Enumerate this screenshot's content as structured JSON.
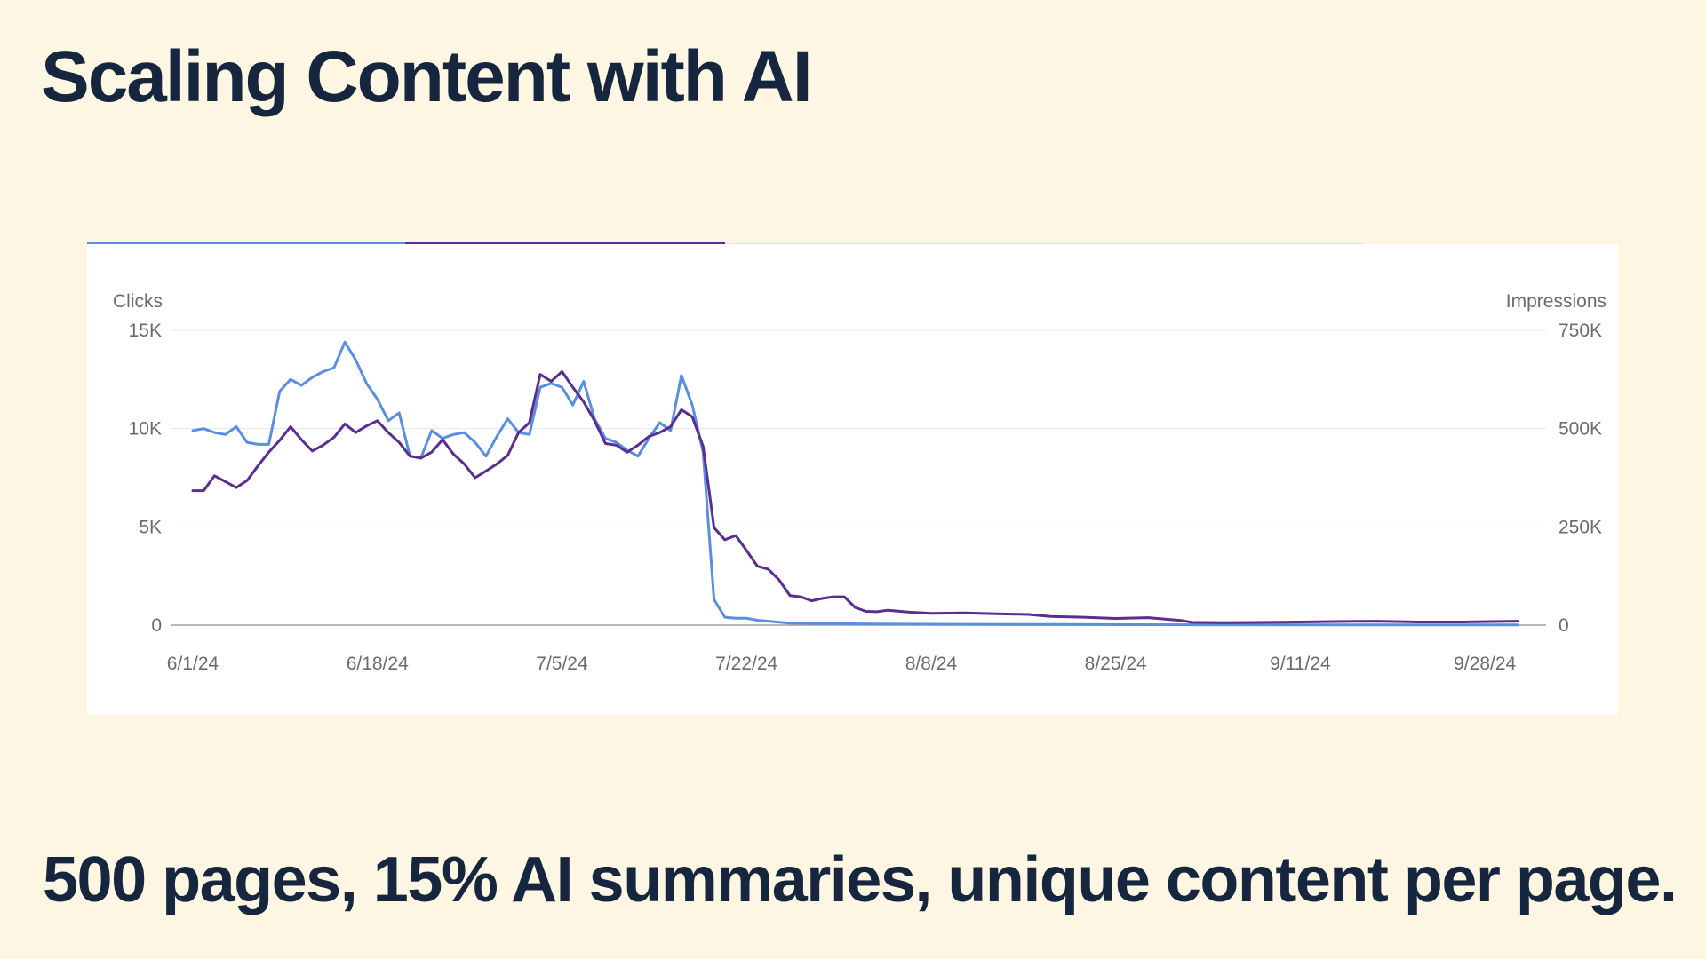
{
  "slide": {
    "title": "Scaling Content with AI",
    "footer": "500 pages, 15% AI summaries, unique content per page."
  },
  "colors": {
    "background": "#fdf6e3",
    "text": "#17263f",
    "clicks": "#5b8ee0",
    "impressions": "#5a2d91",
    "grid": "#e8e8e8",
    "baseline": "#9e9e9e"
  },
  "chart_data": {
    "type": "line",
    "left_axis_label": "Clicks",
    "right_axis_label": "Impressions",
    "left_axis": {
      "ylim": [
        0,
        15000
      ],
      "ticks": [
        0,
        5000,
        10000,
        15000
      ],
      "tick_labels": [
        "0",
        "5K",
        "10K",
        "15K"
      ]
    },
    "right_axis": {
      "ylim": [
        0,
        750000
      ],
      "ticks": [
        0,
        250000,
        500000,
        750000
      ],
      "tick_labels": [
        "0",
        "250K",
        "500K",
        "750K"
      ]
    },
    "x_range": [
      "2024-06-01",
      "2024-10-01"
    ],
    "x_ticks": [
      "2024-06-01",
      "2024-06-18",
      "2024-07-05",
      "2024-07-22",
      "2024-08-08",
      "2024-08-25",
      "2024-09-11",
      "2024-09-28"
    ],
    "x_tick_labels": [
      "6/1/24",
      "6/18/24",
      "7/5/24",
      "7/22/24",
      "8/8/24",
      "8/25/24",
      "9/11/24",
      "9/28/24"
    ],
    "grid": true,
    "legend": "none",
    "series": [
      {
        "axis": "left",
        "color": "#5b8ee0",
        "points": [
          [
            "2024-06-01",
            9900
          ],
          [
            "2024-06-02",
            10000
          ],
          [
            "2024-06-03",
            9800
          ],
          [
            "2024-06-04",
            9700
          ],
          [
            "2024-06-05",
            10100
          ],
          [
            "2024-06-06",
            9300
          ],
          [
            "2024-06-07",
            9200
          ],
          [
            "2024-06-08",
            9200
          ],
          [
            "2024-06-09",
            11900
          ],
          [
            "2024-06-10",
            12500
          ],
          [
            "2024-06-11",
            12200
          ],
          [
            "2024-06-12",
            12600
          ],
          [
            "2024-06-13",
            12900
          ],
          [
            "2024-06-14",
            13100
          ],
          [
            "2024-06-15",
            14400
          ],
          [
            "2024-06-16",
            13500
          ],
          [
            "2024-06-17",
            12300
          ],
          [
            "2024-06-18",
            11500
          ],
          [
            "2024-06-19",
            10400
          ],
          [
            "2024-06-20",
            10800
          ],
          [
            "2024-06-21",
            8600
          ],
          [
            "2024-06-22",
            8500
          ],
          [
            "2024-06-23",
            9900
          ],
          [
            "2024-06-24",
            9500
          ],
          [
            "2024-06-25",
            9700
          ],
          [
            "2024-06-26",
            9800
          ],
          [
            "2024-06-27",
            9300
          ],
          [
            "2024-06-28",
            8600
          ],
          [
            "2024-06-29",
            9600
          ],
          [
            "2024-06-30",
            10500
          ],
          [
            "2024-07-01",
            9800
          ],
          [
            "2024-07-02",
            9700
          ],
          [
            "2024-07-03",
            12100
          ],
          [
            "2024-07-04",
            12300
          ],
          [
            "2024-07-05",
            12100
          ],
          [
            "2024-07-06",
            11200
          ],
          [
            "2024-07-07",
            12400
          ],
          [
            "2024-07-08",
            10500
          ],
          [
            "2024-07-09",
            9500
          ],
          [
            "2024-07-10",
            9300
          ],
          [
            "2024-07-11",
            8900
          ],
          [
            "2024-07-12",
            8600
          ],
          [
            "2024-07-13",
            9500
          ],
          [
            "2024-07-14",
            10300
          ],
          [
            "2024-07-15",
            9900
          ],
          [
            "2024-07-16",
            12700
          ],
          [
            "2024-07-17",
            11200
          ],
          [
            "2024-07-18",
            8800
          ],
          [
            "2024-07-19",
            1300
          ],
          [
            "2024-07-20",
            400
          ],
          [
            "2024-07-21",
            350
          ],
          [
            "2024-07-22",
            350
          ],
          [
            "2024-07-23",
            250
          ],
          [
            "2024-07-24",
            200
          ],
          [
            "2024-07-25",
            150
          ],
          [
            "2024-07-26",
            100
          ],
          [
            "2024-07-29",
            80
          ],
          [
            "2024-08-03",
            60
          ],
          [
            "2024-08-10",
            40
          ],
          [
            "2024-08-20",
            30
          ],
          [
            "2024-09-01",
            20
          ],
          [
            "2024-09-15",
            15
          ],
          [
            "2024-10-01",
            10
          ]
        ]
      },
      {
        "axis": "right",
        "color": "#5a2d91",
        "points": [
          [
            "2024-06-01",
            342000
          ],
          [
            "2024-06-02",
            342000
          ],
          [
            "2024-06-03",
            380000
          ],
          [
            "2024-06-04",
            365000
          ],
          [
            "2024-06-05",
            350000
          ],
          [
            "2024-06-06",
            368000
          ],
          [
            "2024-06-07",
            405000
          ],
          [
            "2024-06-08",
            440000
          ],
          [
            "2024-06-09",
            470000
          ],
          [
            "2024-06-10",
            505000
          ],
          [
            "2024-06-11",
            472000
          ],
          [
            "2024-06-12",
            443000
          ],
          [
            "2024-06-13",
            458000
          ],
          [
            "2024-06-14",
            478000
          ],
          [
            "2024-06-15",
            512000
          ],
          [
            "2024-06-16",
            490000
          ],
          [
            "2024-06-17",
            507000
          ],
          [
            "2024-06-18",
            520000
          ],
          [
            "2024-06-19",
            490000
          ],
          [
            "2024-06-20",
            465000
          ],
          [
            "2024-06-21",
            430000
          ],
          [
            "2024-06-22",
            425000
          ],
          [
            "2024-06-23",
            440000
          ],
          [
            "2024-06-24",
            472000
          ],
          [
            "2024-06-25",
            435000
          ],
          [
            "2024-06-26",
            410000
          ],
          [
            "2024-06-27",
            375000
          ],
          [
            "2024-06-28",
            392000
          ],
          [
            "2024-06-29",
            410000
          ],
          [
            "2024-06-30",
            432000
          ],
          [
            "2024-07-01",
            490000
          ],
          [
            "2024-07-02",
            515000
          ],
          [
            "2024-07-03",
            638000
          ],
          [
            "2024-07-04",
            620000
          ],
          [
            "2024-07-05",
            645000
          ],
          [
            "2024-07-06",
            605000
          ],
          [
            "2024-07-07",
            568000
          ],
          [
            "2024-07-08",
            520000
          ],
          [
            "2024-07-09",
            462000
          ],
          [
            "2024-07-10",
            458000
          ],
          [
            "2024-07-11",
            440000
          ],
          [
            "2024-07-12",
            458000
          ],
          [
            "2024-07-13",
            480000
          ],
          [
            "2024-07-14",
            490000
          ],
          [
            "2024-07-15",
            505000
          ],
          [
            "2024-07-16",
            548000
          ],
          [
            "2024-07-17",
            530000
          ],
          [
            "2024-07-18",
            455000
          ],
          [
            "2024-07-19",
            248000
          ],
          [
            "2024-07-20",
            217000
          ],
          [
            "2024-07-21",
            228000
          ],
          [
            "2024-07-22",
            190000
          ],
          [
            "2024-07-23",
            150000
          ],
          [
            "2024-07-24",
            142000
          ],
          [
            "2024-07-25",
            115000
          ],
          [
            "2024-07-26",
            75000
          ],
          [
            "2024-07-27",
            72000
          ],
          [
            "2024-07-28",
            62000
          ],
          [
            "2024-07-29",
            68000
          ],
          [
            "2024-07-30",
            72000
          ],
          [
            "2024-07-31",
            72000
          ],
          [
            "2024-08-01",
            45000
          ],
          [
            "2024-08-02",
            35000
          ],
          [
            "2024-08-03",
            34000
          ],
          [
            "2024-08-04",
            38000
          ],
          [
            "2024-08-06",
            33000
          ],
          [
            "2024-08-08",
            30000
          ],
          [
            "2024-08-11",
            31000
          ],
          [
            "2024-08-14",
            29000
          ],
          [
            "2024-08-17",
            27000
          ],
          [
            "2024-08-19",
            22000
          ],
          [
            "2024-08-22",
            20000
          ],
          [
            "2024-08-25",
            17000
          ],
          [
            "2024-08-28",
            19000
          ],
          [
            "2024-08-31",
            12000
          ],
          [
            "2024-09-01",
            7000
          ],
          [
            "2024-09-04",
            6000
          ],
          [
            "2024-09-08",
            7000
          ],
          [
            "2024-09-11",
            8000
          ],
          [
            "2024-09-14",
            9000
          ],
          [
            "2024-09-18",
            10000
          ],
          [
            "2024-09-22",
            8000
          ],
          [
            "2024-09-26",
            8000
          ],
          [
            "2024-10-01",
            10000
          ]
        ]
      }
    ]
  }
}
